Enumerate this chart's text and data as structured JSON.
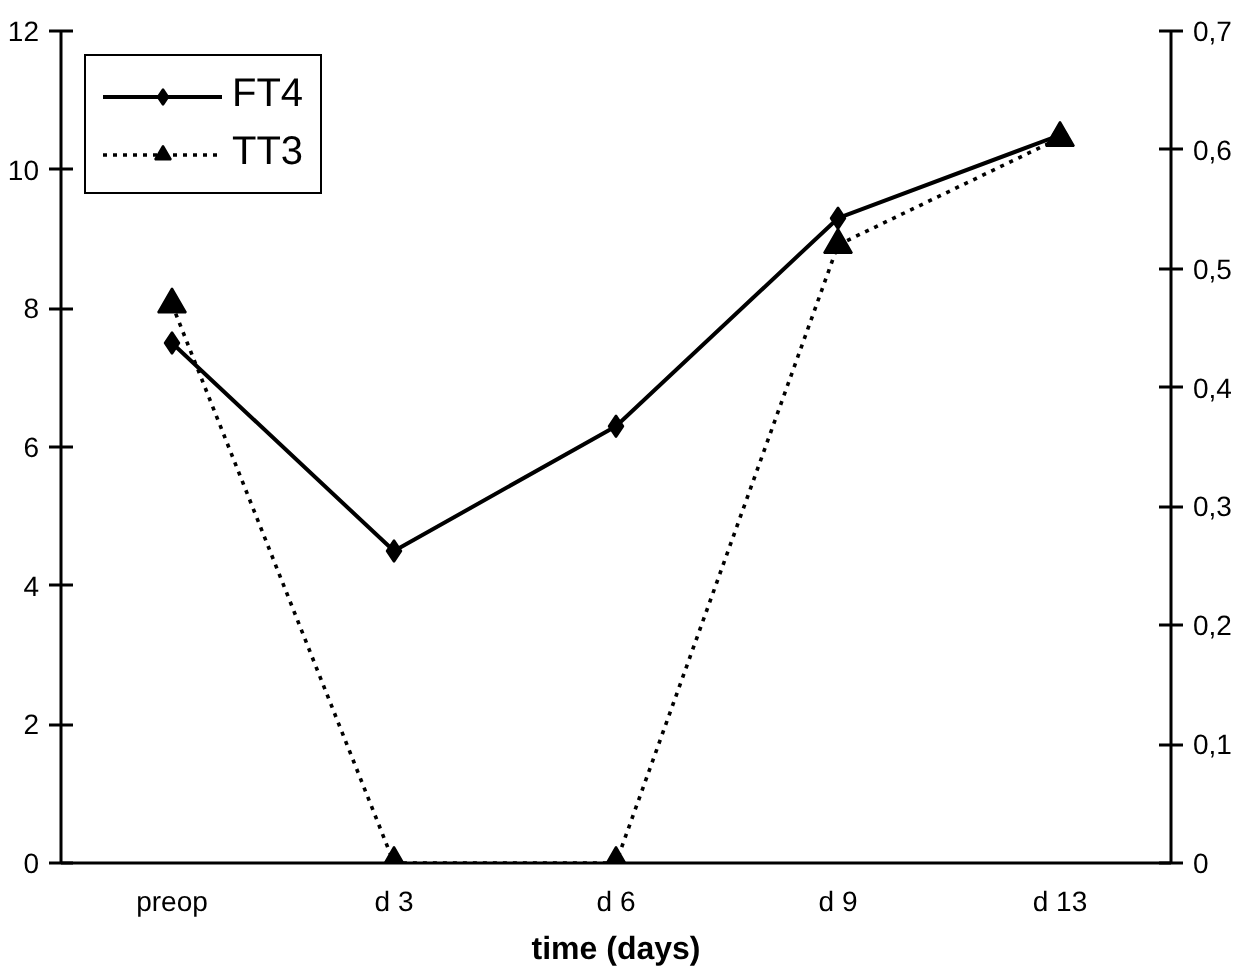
{
  "chart_data": {
    "type": "line",
    "xlabel": "time (days)",
    "categories": [
      "preop",
      "d 3",
      "d 6",
      "d 9",
      "d 13"
    ],
    "series": [
      {
        "name": "FT4",
        "color": "#000000",
        "values": [
          7.5,
          4.5,
          6.3,
          9.3,
          10.5
        ],
        "marker": "diamond",
        "line_style": "solid"
      },
      {
        "name": "TT3",
        "color": "#000000",
        "values": [
          0.47,
          0,
          0,
          0.52,
          0.61
        ],
        "marker": "triangle",
        "line_style": "dotted",
        "axis": "y2"
      }
    ],
    "ylim": [
      0,
      12
    ],
    "yticks": [
      0,
      2,
      4,
      6,
      8,
      10,
      12
    ],
    "y2lim": [
      0,
      0.7
    ],
    "y2ticks": [
      0,
      {
        "value": 0.1,
        "label": "0,1"
      },
      {
        "value": 0.2,
        "label": "0,2"
      },
      {
        "value": 0.3,
        "label": "0,3"
      },
      {
        "value": 0.4,
        "label": "0,4"
      },
      {
        "value": 0.5,
        "label": "0,5"
      },
      {
        "value": 0.6,
        "label": "0,6"
      },
      {
        "value": 0.7,
        "label": "0,7"
      }
    ],
    "grid": false,
    "legend": "top left"
  }
}
